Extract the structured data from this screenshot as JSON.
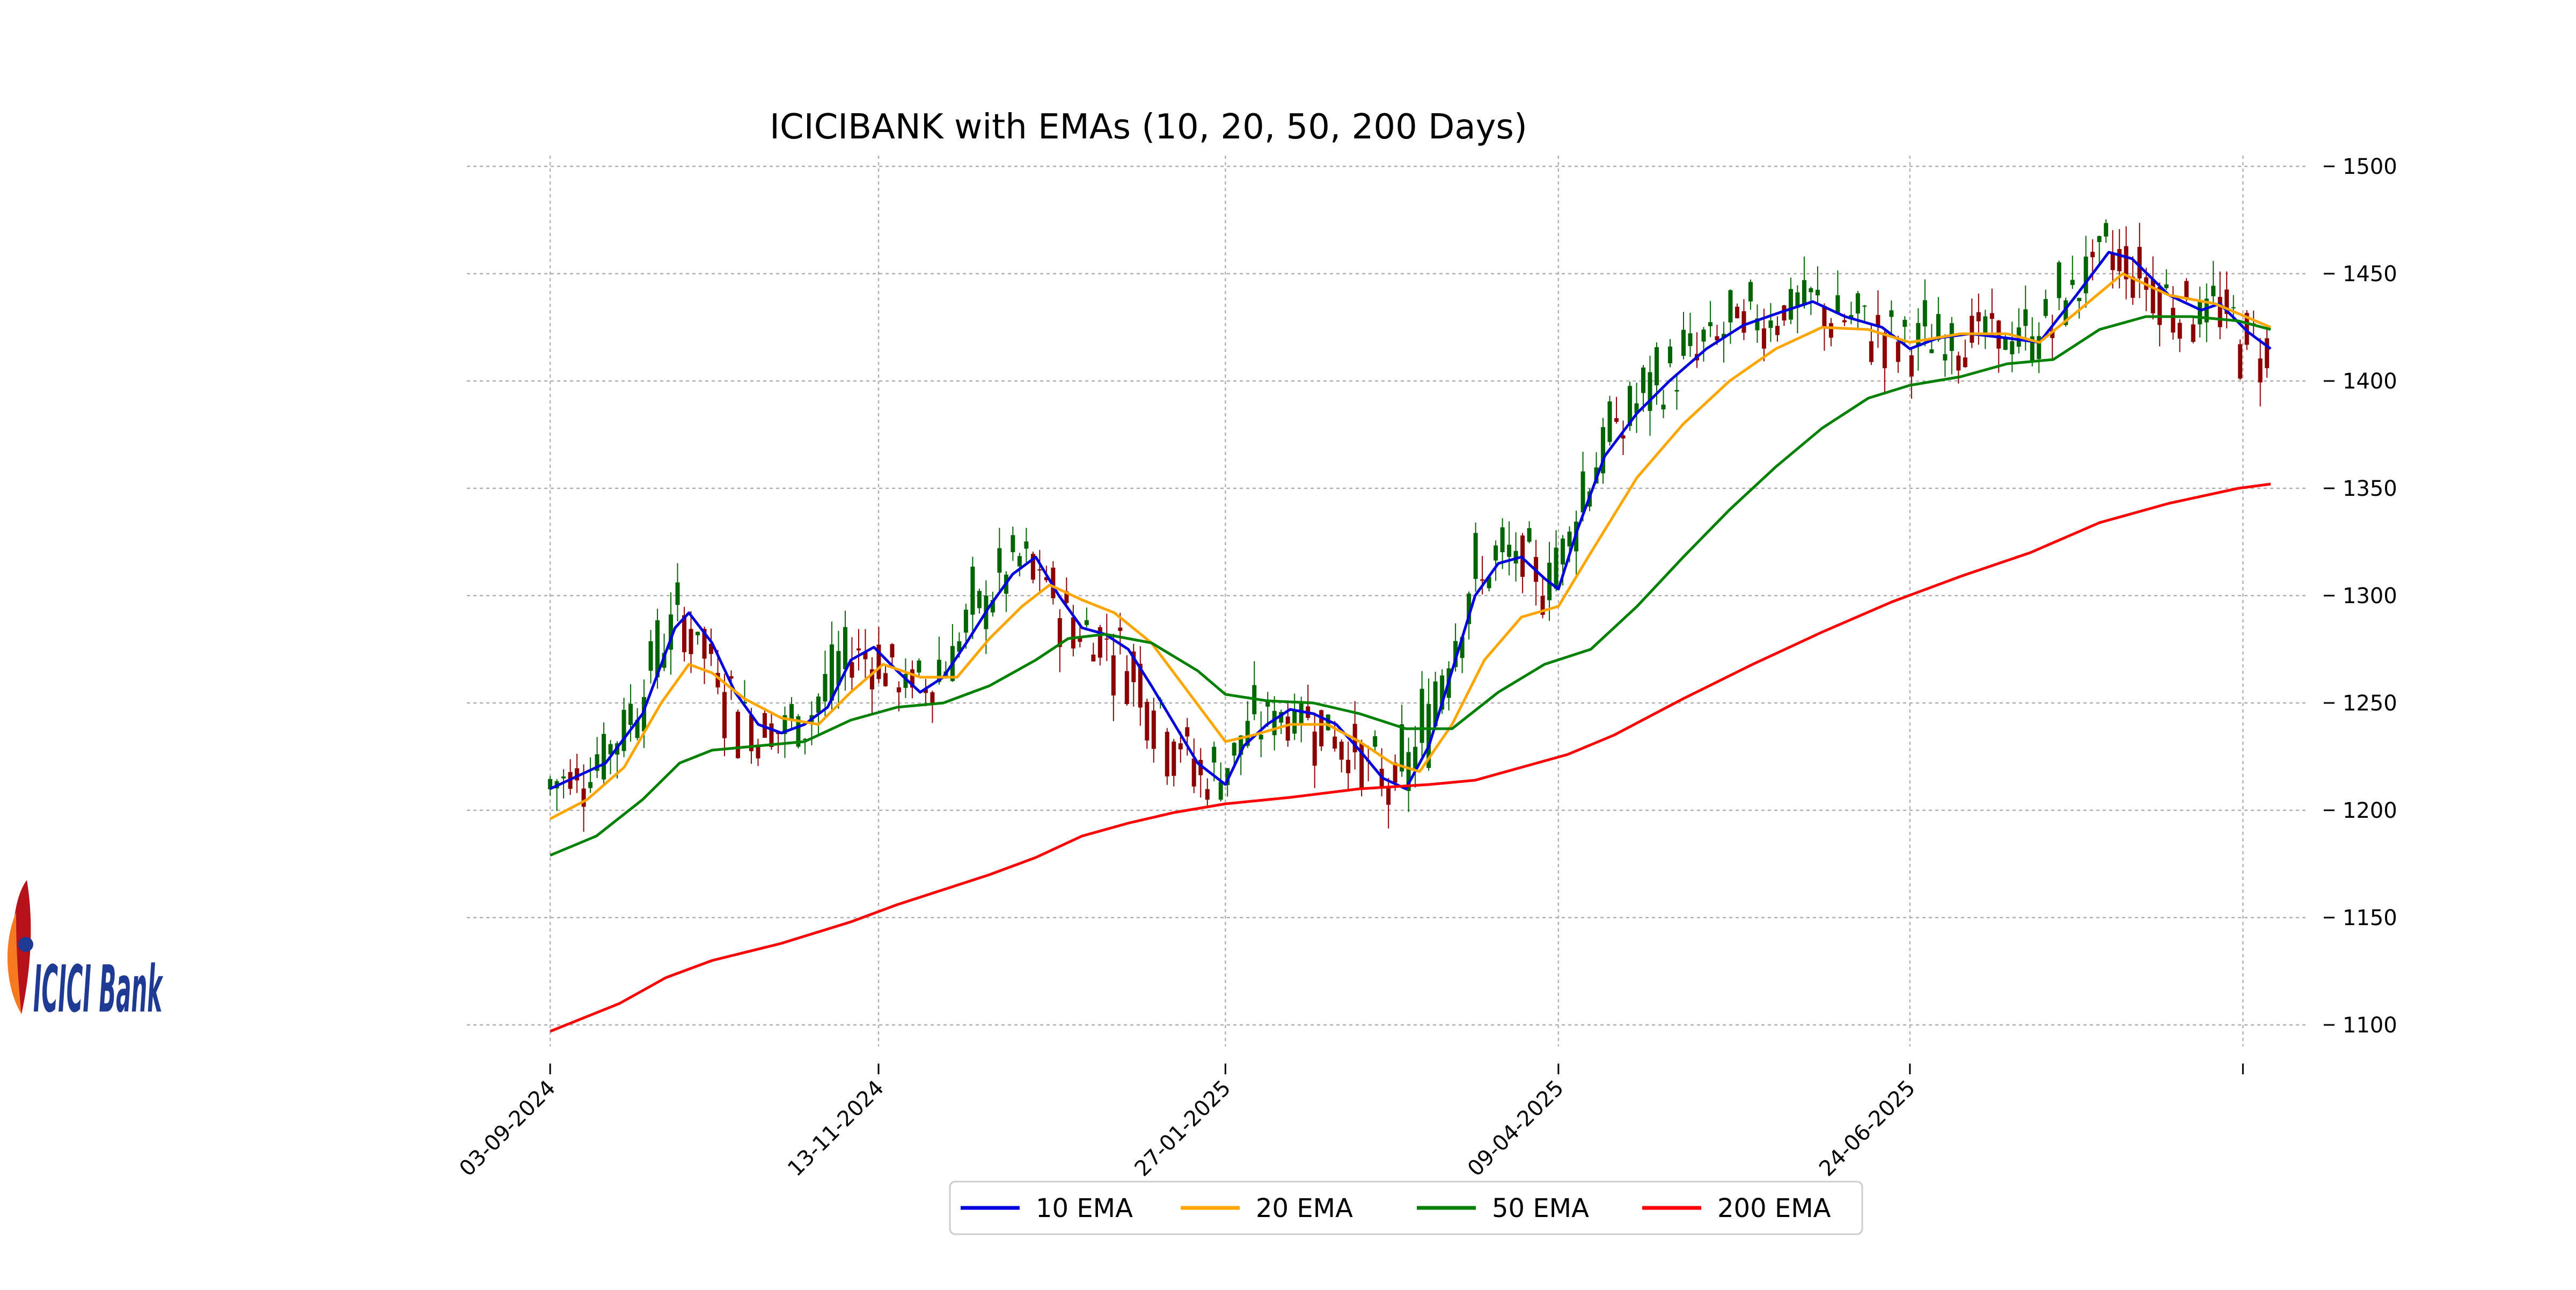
{
  "logo": {
    "text": "ICICI Bank",
    "color": "#1f3a93",
    "accent": "#b5121b"
  },
  "chart_data": {
    "type": "line",
    "title": "ICICIBANK with EMAs (10, 20, 50, 200 Days)",
    "xlabel": "",
    "ylabel": "",
    "ylim": [
      1090,
      1505
    ],
    "yticks": [
      1100,
      1150,
      1200,
      1250,
      1300,
      1350,
      1400,
      1450,
      1500
    ],
    "xticks": [
      {
        "label": "03-09-2024",
        "day": 0
      },
      {
        "label": "13-11-2024",
        "day": 71
      },
      {
        "label": "27-01-2025",
        "day": 146
      },
      {
        "label": "09-04-2025",
        "day": 218
      },
      {
        "label": "24-06-2025",
        "day": 294
      },
      {
        "label": "",
        "day": 366
      }
    ],
    "xlim": [
      -18,
      380
    ],
    "grid": true,
    "legend": "bottom-center",
    "candle_colors": {
      "up": "#006400",
      "down": "#8b0000"
    },
    "series": [
      {
        "name": "10 EMA",
        "color": "#0000dd",
        "points": [
          [
            0,
            1210
          ],
          [
            5,
            1215
          ],
          [
            12,
            1222
          ],
          [
            20,
            1245
          ],
          [
            27,
            1285
          ],
          [
            30,
            1292
          ],
          [
            35,
            1278
          ],
          [
            40,
            1255
          ],
          [
            45,
            1240
          ],
          [
            50,
            1236
          ],
          [
            55,
            1240
          ],
          [
            60,
            1248
          ],
          [
            65,
            1270
          ],
          [
            70,
            1276
          ],
          [
            75,
            1265
          ],
          [
            80,
            1255
          ],
          [
            85,
            1262
          ],
          [
            90,
            1278
          ],
          [
            95,
            1295
          ],
          [
            100,
            1310
          ],
          [
            105,
            1318
          ],
          [
            110,
            1300
          ],
          [
            115,
            1285
          ],
          [
            120,
            1282
          ],
          [
            125,
            1275
          ],
          [
            130,
            1258
          ],
          [
            135,
            1240
          ],
          [
            140,
            1222
          ],
          [
            146,
            1212
          ],
          [
            150,
            1230
          ],
          [
            155,
            1240
          ],
          [
            160,
            1247
          ],
          [
            165,
            1245
          ],
          [
            170,
            1240
          ],
          [
            175,
            1228
          ],
          [
            180,
            1215
          ],
          [
            185,
            1210
          ],
          [
            190,
            1230
          ],
          [
            195,
            1265
          ],
          [
            200,
            1300
          ],
          [
            205,
            1315
          ],
          [
            210,
            1318
          ],
          [
            215,
            1308
          ],
          [
            218,
            1303
          ],
          [
            222,
            1330
          ],
          [
            228,
            1365
          ],
          [
            235,
            1385
          ],
          [
            242,
            1400
          ],
          [
            250,
            1415
          ],
          [
            258,
            1426
          ],
          [
            266,
            1432
          ],
          [
            273,
            1437
          ],
          [
            280,
            1430
          ],
          [
            288,
            1425
          ],
          [
            294,
            1415
          ],
          [
            300,
            1420
          ],
          [
            307,
            1422
          ],
          [
            315,
            1420
          ],
          [
            322,
            1418
          ],
          [
            330,
            1440
          ],
          [
            337,
            1460
          ],
          [
            342,
            1457
          ],
          [
            350,
            1440
          ],
          [
            357,
            1433
          ],
          [
            361,
            1436
          ],
          [
            367,
            1423
          ],
          [
            372,
            1415
          ]
        ]
      },
      {
        "name": "20 EMA",
        "color": "#ffa500",
        "points": [
          [
            0,
            1196
          ],
          [
            8,
            1205
          ],
          [
            16,
            1220
          ],
          [
            24,
            1250
          ],
          [
            30,
            1268
          ],
          [
            35,
            1264
          ],
          [
            42,
            1252
          ],
          [
            50,
            1243
          ],
          [
            58,
            1240
          ],
          [
            65,
            1255
          ],
          [
            72,
            1268
          ],
          [
            80,
            1262
          ],
          [
            88,
            1262
          ],
          [
            95,
            1280
          ],
          [
            102,
            1295
          ],
          [
            108,
            1305
          ],
          [
            115,
            1298
          ],
          [
            122,
            1292
          ],
          [
            130,
            1278
          ],
          [
            138,
            1255
          ],
          [
            146,
            1232
          ],
          [
            152,
            1235
          ],
          [
            160,
            1240
          ],
          [
            168,
            1240
          ],
          [
            175,
            1232
          ],
          [
            182,
            1222
          ],
          [
            188,
            1218
          ],
          [
            195,
            1240
          ],
          [
            202,
            1270
          ],
          [
            210,
            1290
          ],
          [
            218,
            1295
          ],
          [
            225,
            1320
          ],
          [
            235,
            1355
          ],
          [
            245,
            1380
          ],
          [
            255,
            1400
          ],
          [
            265,
            1415
          ],
          [
            275,
            1425
          ],
          [
            285,
            1424
          ],
          [
            294,
            1418
          ],
          [
            305,
            1422
          ],
          [
            315,
            1422
          ],
          [
            322,
            1418
          ],
          [
            330,
            1432
          ],
          [
            340,
            1450
          ],
          [
            350,
            1440
          ],
          [
            360,
            1436
          ],
          [
            372,
            1425
          ]
        ]
      },
      {
        "name": "50 EMA",
        "color": "#008000",
        "points": [
          [
            0,
            1179
          ],
          [
            10,
            1188
          ],
          [
            20,
            1205
          ],
          [
            28,
            1222
          ],
          [
            35,
            1228
          ],
          [
            45,
            1230
          ],
          [
            55,
            1232
          ],
          [
            65,
            1242
          ],
          [
            75,
            1248
          ],
          [
            85,
            1250
          ],
          [
            95,
            1258
          ],
          [
            105,
            1270
          ],
          [
            112,
            1280
          ],
          [
            120,
            1282
          ],
          [
            130,
            1278
          ],
          [
            140,
            1265
          ],
          [
            146,
            1254
          ],
          [
            155,
            1251
          ],
          [
            165,
            1250
          ],
          [
            175,
            1245
          ],
          [
            185,
            1238
          ],
          [
            195,
            1238
          ],
          [
            205,
            1255
          ],
          [
            215,
            1268
          ],
          [
            225,
            1275
          ],
          [
            235,
            1295
          ],
          [
            245,
            1318
          ],
          [
            255,
            1340
          ],
          [
            265,
            1360
          ],
          [
            275,
            1378
          ],
          [
            285,
            1392
          ],
          [
            294,
            1398
          ],
          [
            305,
            1402
          ],
          [
            315,
            1408
          ],
          [
            325,
            1410
          ],
          [
            335,
            1424
          ],
          [
            345,
            1430
          ],
          [
            355,
            1430
          ],
          [
            365,
            1428
          ],
          [
            372,
            1424
          ]
        ]
      },
      {
        "name": "200 EMA",
        "color": "#ff0000",
        "points": [
          [
            0,
            1097
          ],
          [
            15,
            1110
          ],
          [
            25,
            1122
          ],
          [
            35,
            1130
          ],
          [
            50,
            1138
          ],
          [
            65,
            1148
          ],
          [
            75,
            1156
          ],
          [
            85,
            1163
          ],
          [
            95,
            1170
          ],
          [
            105,
            1178
          ],
          [
            115,
            1188
          ],
          [
            125,
            1194
          ],
          [
            135,
            1199
          ],
          [
            146,
            1203
          ],
          [
            160,
            1206
          ],
          [
            175,
            1210
          ],
          [
            190,
            1212
          ],
          [
            200,
            1214
          ],
          [
            210,
            1220
          ],
          [
            220,
            1226
          ],
          [
            230,
            1235
          ],
          [
            245,
            1252
          ],
          [
            260,
            1268
          ],
          [
            275,
            1283
          ],
          [
            290,
            1297
          ],
          [
            305,
            1309
          ],
          [
            320,
            1320
          ],
          [
            335,
            1334
          ],
          [
            350,
            1343
          ],
          [
            365,
            1350
          ],
          [
            372,
            1352
          ]
        ]
      }
    ]
  }
}
